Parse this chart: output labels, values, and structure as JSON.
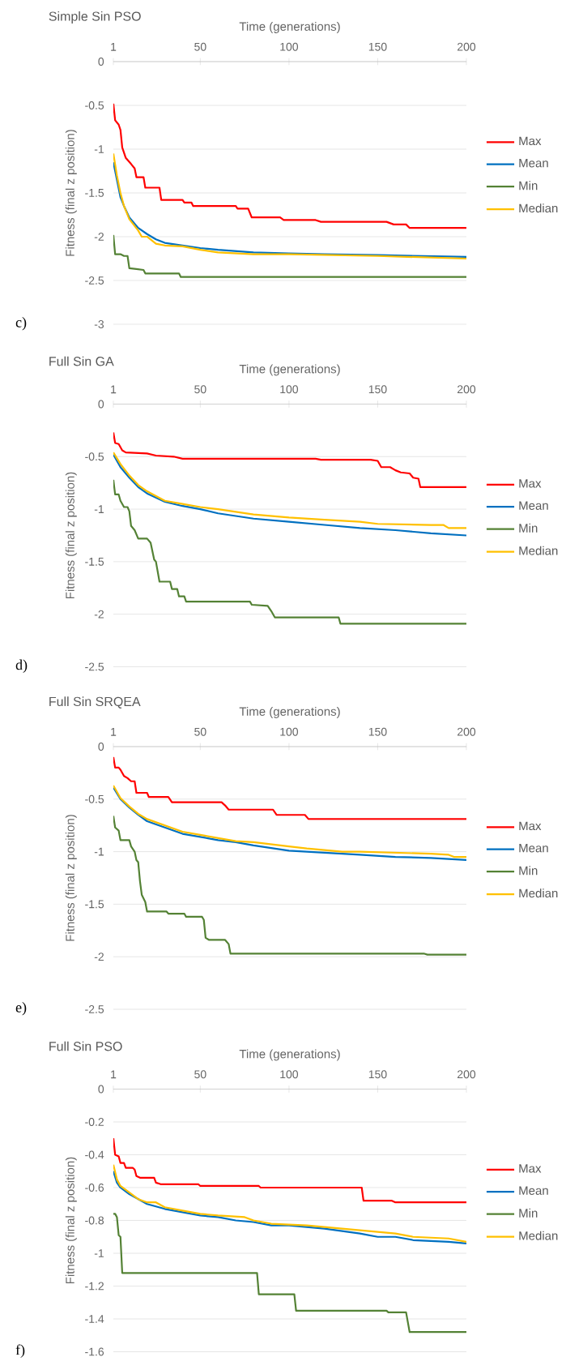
{
  "chart_data": [
    {
      "type": "line",
      "title": "Simple Sin PSO",
      "xlabel": "Time (generations)",
      "ylabel": "Fitness (final z position)",
      "annotations": [
        "c)"
      ],
      "xlim": [
        1,
        200
      ],
      "xticks": [
        1,
        50,
        100,
        150,
        200
      ],
      "ylim": [
        -3,
        0
      ],
      "yticks": [
        -3,
        -2.5,
        -2,
        -1.5,
        -1,
        -0.5,
        0
      ],
      "grid": "y",
      "legend": "right",
      "series": [
        {
          "name": "Max",
          "color": "#ff0000",
          "x": [
            1,
            2,
            4,
            5,
            6,
            8,
            11,
            13,
            14,
            18,
            19,
            27,
            28,
            40,
            41,
            45,
            46,
            70,
            71,
            77,
            79,
            95,
            97,
            115,
            118,
            155,
            159,
            166,
            168,
            200
          ],
          "values": [
            -0.48,
            -0.67,
            -0.72,
            -0.78,
            -0.98,
            -1.1,
            -1.17,
            -1.22,
            -1.32,
            -1.32,
            -1.44,
            -1.44,
            -1.58,
            -1.58,
            -1.61,
            -1.61,
            -1.65,
            -1.65,
            -1.68,
            -1.68,
            -1.78,
            -1.78,
            -1.81,
            -1.81,
            -1.83,
            -1.83,
            -1.86,
            -1.86,
            -1.9,
            -1.9
          ]
        },
        {
          "name": "Mean",
          "color": "#0070c0",
          "x": [
            1,
            3,
            5,
            7,
            10,
            15,
            20,
            25,
            30,
            40,
            50,
            60,
            80,
            100,
            120,
            150,
            200
          ],
          "values": [
            -1.15,
            -1.35,
            -1.55,
            -1.65,
            -1.78,
            -1.9,
            -1.97,
            -2.03,
            -2.07,
            -2.1,
            -2.13,
            -2.15,
            -2.18,
            -2.19,
            -2.2,
            -2.21,
            -2.23
          ]
        },
        {
          "name": "Min",
          "color": "#548235",
          "x": [
            1,
            2,
            5,
            7,
            9,
            10,
            14,
            18,
            19,
            38,
            39,
            200
          ],
          "values": [
            -1.98,
            -2.2,
            -2.2,
            -2.22,
            -2.22,
            -2.36,
            -2.37,
            -2.38,
            -2.42,
            -2.42,
            -2.46,
            -2.46
          ]
        },
        {
          "name": "Median",
          "color": "#ffc000",
          "x": [
            1,
            3,
            5,
            7,
            10,
            15,
            17,
            20,
            25,
            30,
            40,
            50,
            60,
            80,
            100,
            150,
            200
          ],
          "values": [
            -1.05,
            -1.3,
            -1.5,
            -1.65,
            -1.8,
            -1.93,
            -2.0,
            -2.0,
            -2.08,
            -2.1,
            -2.11,
            -2.15,
            -2.18,
            -2.2,
            -2.2,
            -2.22,
            -2.25
          ]
        }
      ]
    },
    {
      "type": "line",
      "title": "Full Sin GA",
      "xlabel": "Time (generations)",
      "ylabel": "Fitness (final z position)",
      "annotations": [
        "d)"
      ],
      "xlim": [
        1,
        200
      ],
      "xticks": [
        1,
        50,
        100,
        150,
        200
      ],
      "ylim": [
        -2.5,
        0
      ],
      "yticks": [
        -2.5,
        -2,
        -1.5,
        -1,
        -0.5,
        0
      ],
      "grid": "y",
      "legend": "right",
      "series": [
        {
          "name": "Max",
          "color": "#ff0000",
          "x": [
            1,
            2,
            4,
            6,
            8,
            20,
            25,
            35,
            40,
            115,
            118,
            146,
            150,
            152,
            157,
            160,
            163,
            168,
            170,
            173,
            174,
            200
          ],
          "values": [
            -0.27,
            -0.37,
            -0.38,
            -0.44,
            -0.46,
            -0.47,
            -0.49,
            -0.5,
            -0.52,
            -0.52,
            -0.53,
            -0.53,
            -0.54,
            -0.6,
            -0.6,
            -0.63,
            -0.65,
            -0.66,
            -0.7,
            -0.71,
            -0.79,
            -0.79
          ]
        },
        {
          "name": "Mean",
          "color": "#0070c0",
          "x": [
            1,
            5,
            10,
            15,
            20,
            30,
            40,
            50,
            60,
            80,
            100,
            120,
            140,
            160,
            180,
            200
          ],
          "values": [
            -0.48,
            -0.6,
            -0.7,
            -0.79,
            -0.85,
            -0.93,
            -0.97,
            -1.0,
            -1.04,
            -1.09,
            -1.12,
            -1.15,
            -1.18,
            -1.2,
            -1.23,
            -1.25
          ]
        },
        {
          "name": "Min",
          "color": "#548235",
          "x": [
            1,
            2,
            4,
            5,
            7,
            9,
            10,
            11,
            13,
            15,
            20,
            22,
            24,
            25,
            27,
            33,
            34,
            37,
            38,
            41,
            42,
            78,
            79,
            88,
            90,
            92,
            128,
            129,
            200
          ],
          "values": [
            -0.72,
            -0.86,
            -0.86,
            -0.92,
            -0.98,
            -0.98,
            -1.02,
            -1.16,
            -1.2,
            -1.28,
            -1.28,
            -1.32,
            -1.48,
            -1.5,
            -1.69,
            -1.69,
            -1.76,
            -1.76,
            -1.83,
            -1.83,
            -1.88,
            -1.88,
            -1.91,
            -1.92,
            -1.97,
            -2.03,
            -2.03,
            -2.09,
            -2.09
          ]
        },
        {
          "name": "Median",
          "color": "#ffc000",
          "x": [
            1,
            5,
            10,
            15,
            20,
            30,
            40,
            50,
            60,
            80,
            100,
            120,
            140,
            150,
            180,
            187,
            190,
            200
          ],
          "values": [
            -0.46,
            -0.57,
            -0.68,
            -0.77,
            -0.83,
            -0.92,
            -0.95,
            -0.98,
            -1.0,
            -1.05,
            -1.08,
            -1.1,
            -1.12,
            -1.14,
            -1.15,
            -1.15,
            -1.18,
            -1.18
          ]
        }
      ]
    },
    {
      "type": "line",
      "title": "Full Sin SRQEA",
      "xlabel": "Time (generations)",
      "ylabel": "Fitness (final z position)",
      "annotations": [
        "e)"
      ],
      "xlim": [
        1,
        200
      ],
      "xticks": [
        1,
        50,
        100,
        150,
        200
      ],
      "ylim": [
        -2.5,
        0
      ],
      "yticks": [
        -2.5,
        -2,
        -1.5,
        -1,
        -0.5,
        0
      ],
      "grid": "y",
      "legend": "right",
      "series": [
        {
          "name": "Max",
          "color": "#ff0000",
          "x": [
            1,
            2,
            4,
            5,
            7,
            9,
            11,
            13,
            14,
            20,
            21,
            32,
            34,
            62,
            64,
            66,
            91,
            93,
            109,
            111,
            200
          ],
          "values": [
            -0.1,
            -0.2,
            -0.2,
            -0.22,
            -0.28,
            -0.3,
            -0.33,
            -0.33,
            -0.44,
            -0.44,
            -0.48,
            -0.48,
            -0.53,
            -0.53,
            -0.56,
            -0.6,
            -0.6,
            -0.65,
            -0.65,
            -0.69,
            -0.69
          ]
        },
        {
          "name": "Mean",
          "color": "#0070c0",
          "x": [
            1,
            5,
            10,
            15,
            20,
            30,
            40,
            50,
            60,
            70,
            80,
            100,
            120,
            140,
            160,
            180,
            200
          ],
          "values": [
            -0.39,
            -0.5,
            -0.58,
            -0.65,
            -0.71,
            -0.77,
            -0.83,
            -0.86,
            -0.89,
            -0.91,
            -0.94,
            -0.99,
            -1.01,
            -1.03,
            -1.05,
            -1.06,
            -1.08
          ]
        },
        {
          "name": "Min",
          "color": "#548235",
          "x": [
            1,
            2,
            4,
            5,
            10,
            11,
            13,
            14,
            15,
            16,
            17,
            19,
            20,
            31,
            32,
            41,
            42,
            51,
            52,
            53,
            55,
            64,
            66,
            67,
            176,
            178,
            200
          ],
          "values": [
            -0.66,
            -0.77,
            -0.8,
            -0.89,
            -0.89,
            -0.95,
            -1.0,
            -1.08,
            -1.1,
            -1.28,
            -1.41,
            -1.48,
            -1.57,
            -1.57,
            -1.59,
            -1.59,
            -1.62,
            -1.62,
            -1.65,
            -1.82,
            -1.84,
            -1.84,
            -1.88,
            -1.97,
            -1.97,
            -1.98,
            -1.98
          ]
        },
        {
          "name": "Median",
          "color": "#ffc000",
          "x": [
            1,
            5,
            10,
            15,
            20,
            30,
            40,
            50,
            60,
            70,
            80,
            100,
            110,
            130,
            140,
            160,
            180,
            190,
            193,
            200
          ],
          "values": [
            -0.37,
            -0.49,
            -0.57,
            -0.64,
            -0.69,
            -0.75,
            -0.81,
            -0.84,
            -0.87,
            -0.9,
            -0.91,
            -0.95,
            -0.97,
            -1.0,
            -1.0,
            -1.01,
            -1.02,
            -1.03,
            -1.05,
            -1.05
          ]
        }
      ]
    },
    {
      "type": "line",
      "title": "Full Sin PSO",
      "xlabel": "Time (generations)",
      "ylabel": "Fitness (final z position)",
      "annotations": [
        "f)"
      ],
      "xlim": [
        1,
        200
      ],
      "xticks": [
        1,
        50,
        100,
        150,
        200
      ],
      "ylim": [
        -1.6,
        0
      ],
      "yticks": [
        -1.6,
        -1.4,
        -1.2,
        -1,
        -0.8,
        -0.6,
        -0.4,
        -0.2,
        0
      ],
      "grid": "y",
      "legend": "right",
      "series": [
        {
          "name": "Max",
          "color": "#ff0000",
          "x": [
            1,
            2,
            4,
            5,
            7,
            8,
            12,
            13,
            14,
            16,
            24,
            25,
            28,
            49,
            50,
            83,
            84,
            141,
            142,
            158,
            160,
            200
          ],
          "values": [
            -0.3,
            -0.4,
            -0.41,
            -0.45,
            -0.45,
            -0.48,
            -0.48,
            -0.49,
            -0.53,
            -0.54,
            -0.54,
            -0.57,
            -0.58,
            -0.58,
            -0.59,
            -0.59,
            -0.6,
            -0.6,
            -0.68,
            -0.68,
            -0.69,
            -0.69
          ]
        },
        {
          "name": "Mean",
          "color": "#0070c0",
          "x": [
            1,
            3,
            5,
            10,
            15,
            20,
            30,
            40,
            50,
            60,
            70,
            80,
            90,
            100,
            120,
            140,
            150,
            160,
            170,
            190,
            200
          ],
          "values": [
            -0.5,
            -0.57,
            -0.6,
            -0.64,
            -0.67,
            -0.7,
            -0.73,
            -0.75,
            -0.77,
            -0.78,
            -0.8,
            -0.81,
            -0.83,
            -0.83,
            -0.85,
            -0.88,
            -0.9,
            -0.9,
            -0.92,
            -0.93,
            -0.94
          ]
        },
        {
          "name": "Min",
          "color": "#548235",
          "x": [
            1,
            2,
            3,
            4,
            5,
            6,
            82,
            83,
            103,
            104,
            155,
            156,
            166,
            168,
            200
          ],
          "values": [
            -0.76,
            -0.76,
            -0.78,
            -0.89,
            -0.9,
            -1.12,
            -1.12,
            -1.25,
            -1.25,
            -1.35,
            -1.35,
            -1.36,
            -1.36,
            -1.48,
            -1.48
          ]
        },
        {
          "name": "Median",
          "color": "#ffc000",
          "x": [
            1,
            3,
            5,
            10,
            15,
            20,
            25,
            30,
            40,
            50,
            60,
            75,
            80,
            90,
            110,
            130,
            140,
            160,
            170,
            190,
            200
          ],
          "values": [
            -0.46,
            -0.55,
            -0.59,
            -0.63,
            -0.67,
            -0.69,
            -0.69,
            -0.72,
            -0.74,
            -0.76,
            -0.77,
            -0.78,
            -0.8,
            -0.82,
            -0.83,
            -0.85,
            -0.86,
            -0.88,
            -0.9,
            -0.91,
            -0.93
          ]
        }
      ]
    }
  ]
}
